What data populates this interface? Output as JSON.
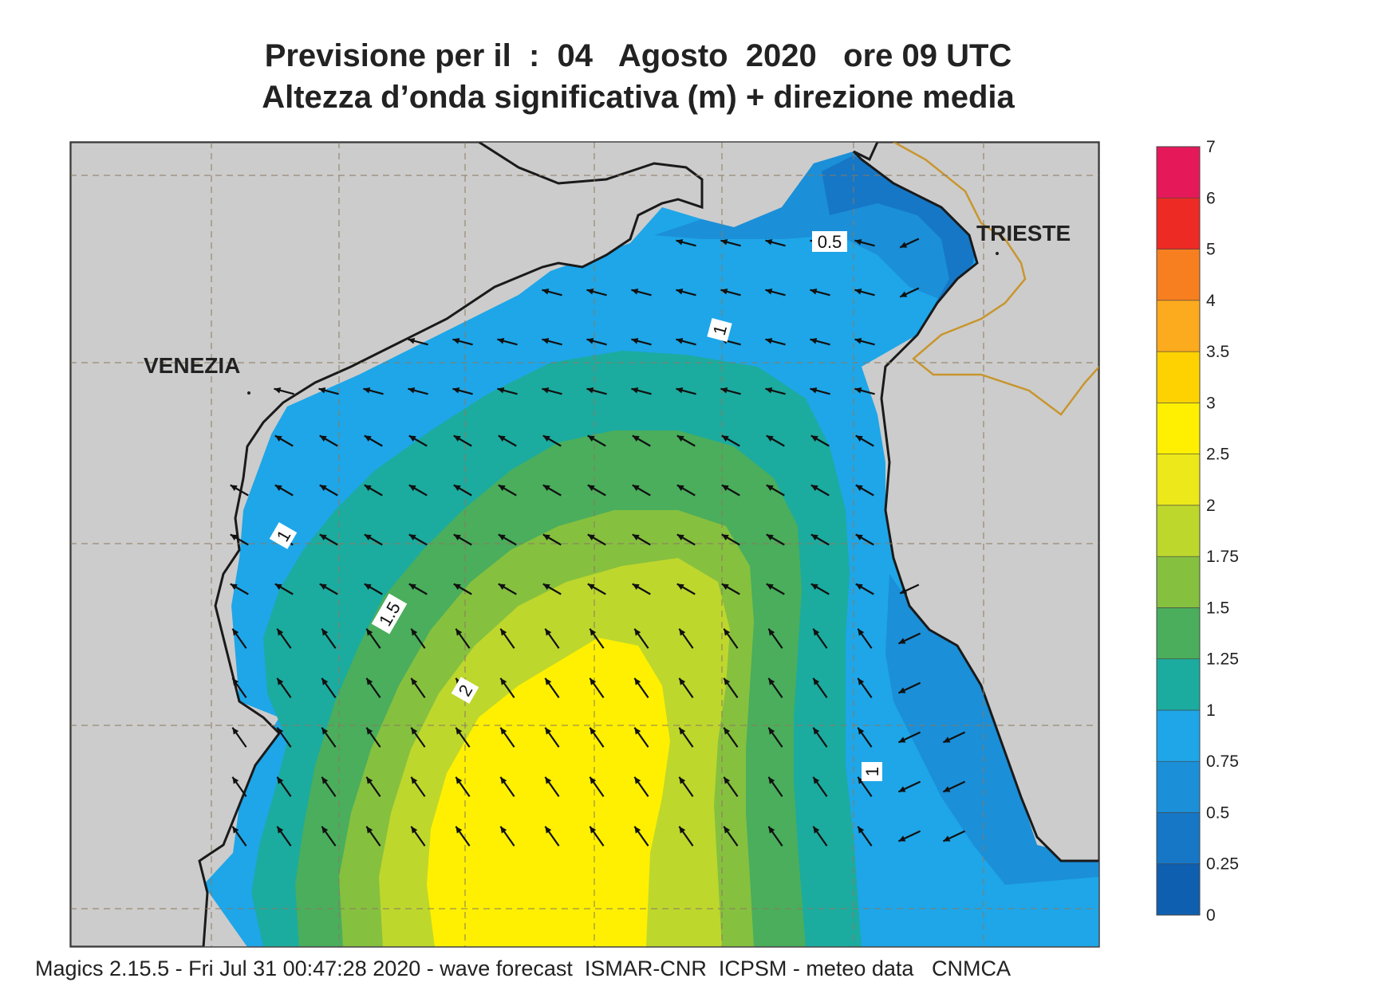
{
  "header": {
    "title_line1": "Previsione per il  :  04   Agosto  2020   ore 09 UTC",
    "title_line2": "Altezza d’onda significativa (m) + direzione media"
  },
  "map": {
    "cities": [
      {
        "name": "VENEZIA"
      },
      {
        "name": "TRIESTE"
      }
    ],
    "contour_labels": [
      "0.5",
      "1",
      "1",
      "1.5",
      "2",
      "1"
    ],
    "arrow_direction": "south-west",
    "land_color": "#cccccc",
    "coastline_color": "#1a1a1a",
    "border_color": "#c8962e"
  },
  "colorbar": {
    "levels": [
      "0",
      "0.25",
      "0.5",
      "0.75",
      "1",
      "1.25",
      "1.5",
      "1.75",
      "2",
      "2.5",
      "3",
      "3.5",
      "4",
      "5",
      "6",
      "7"
    ],
    "colors": [
      "#0f5fb0",
      "#1677c6",
      "#1b8fd8",
      "#1ea6e8",
      "#1cab9f",
      "#4aae5c",
      "#86c03f",
      "#bed72d",
      "#ece81a",
      "#fef000",
      "#fed200",
      "#fcaa1e",
      "#f77f1f",
      "#ee2a24",
      "#e5195a"
    ]
  },
  "footer": {
    "text": "Magics 2.15.5 - Fri Jul 31 00:47:28 2020 - wave forecast  ISMAR-CNR  ICPSM - meteo data   CNMCA"
  }
}
